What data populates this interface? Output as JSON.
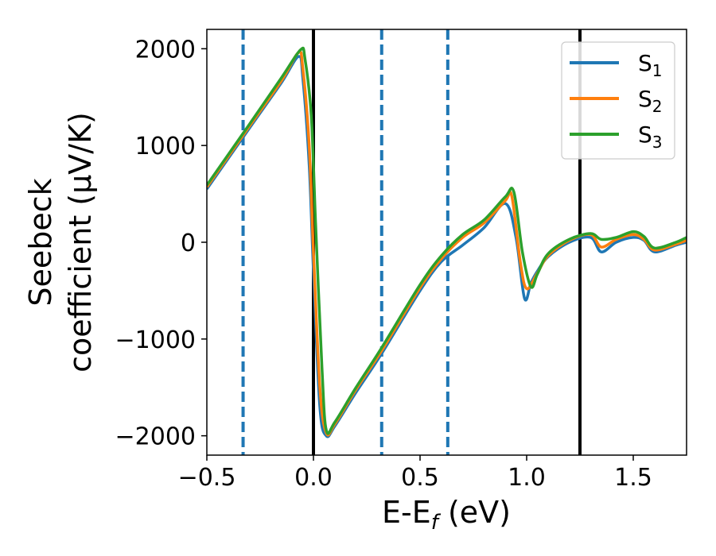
{
  "chart_data": {
    "type": "line",
    "xlabel": {
      "main": "E-E",
      "sub": "f",
      "unit": " (eV)"
    },
    "ylabel": {
      "line1": "Seebeck",
      "line2": "coefficient  (μV/K)"
    },
    "xlim": [
      -0.5,
      1.75
    ],
    "ylim": [
      -2200,
      2200
    ],
    "xticks": [
      {
        "value": -0.5,
        "label": "−0.5"
      },
      {
        "value": 0.0,
        "label": "0.0"
      },
      {
        "value": 0.5,
        "label": "0.5"
      },
      {
        "value": 1.0,
        "label": "1.0"
      },
      {
        "value": 1.5,
        "label": "1.5"
      }
    ],
    "yticks": [
      {
        "value": 2000,
        "label": "2000"
      },
      {
        "value": 1000,
        "label": "1000"
      },
      {
        "value": 0,
        "label": "0"
      },
      {
        "value": -1000,
        "label": "−1000"
      },
      {
        "value": -2000,
        "label": "−2000"
      }
    ],
    "vlines_solid": [
      0.0,
      1.25
    ],
    "vlines_dashed": [
      -0.33,
      0.32,
      0.63
    ],
    "vline_solid_color": "#000000",
    "vline_dashed_color": "#1f77b4",
    "legend": {
      "placement": "top-right"
    },
    "series": [
      {
        "name": "S",
        "sub": "1",
        "color": "#1f77b4",
        "x": [
          -0.5,
          -0.3,
          -0.15,
          -0.07,
          -0.05,
          -0.02,
          0.0,
          0.03,
          0.06,
          0.1,
          0.2,
          0.32,
          0.5,
          0.6,
          0.7,
          0.8,
          0.9,
          0.95,
          0.99,
          1.02,
          1.05,
          1.1,
          1.2,
          1.3,
          1.35,
          1.42,
          1.5,
          1.55,
          1.6,
          1.7,
          1.75
        ],
        "y": [
          550,
          1180,
          1650,
          1920,
          1700,
          800,
          -300,
          -1700,
          -2000,
          -1900,
          -1550,
          -1150,
          -500,
          -200,
          -30,
          150,
          400,
          50,
          -580,
          -420,
          -300,
          -150,
          0,
          50,
          -100,
          0,
          50,
          20,
          -100,
          -30,
          0
        ]
      },
      {
        "name": "S",
        "sub": "2",
        "color": "#ff7f0e",
        "x": [
          -0.5,
          -0.3,
          -0.15,
          -0.07,
          -0.05,
          -0.02,
          0.0,
          0.03,
          0.06,
          0.1,
          0.2,
          0.32,
          0.5,
          0.6,
          0.7,
          0.8,
          0.9,
          0.93,
          0.97,
          1.0,
          1.05,
          1.1,
          1.2,
          1.3,
          1.35,
          1.42,
          1.5,
          1.55,
          1.6,
          1.7,
          1.75
        ],
        "y": [
          570,
          1200,
          1670,
          1960,
          1800,
          1000,
          -100,
          -1500,
          -1970,
          -1880,
          -1520,
          -1120,
          -470,
          -170,
          50,
          200,
          430,
          480,
          -200,
          -480,
          -320,
          -140,
          20,
          80,
          -50,
          30,
          80,
          30,
          -80,
          -20,
          20
        ]
      },
      {
        "name": "S",
        "sub": "3",
        "color": "#2ca02c",
        "x": [
          -0.5,
          -0.3,
          -0.15,
          -0.06,
          -0.04,
          -0.01,
          0.01,
          0.04,
          0.06,
          0.1,
          0.2,
          0.32,
          0.5,
          0.6,
          0.7,
          0.8,
          0.9,
          0.94,
          0.98,
          1.02,
          1.05,
          1.1,
          1.2,
          1.3,
          1.35,
          1.42,
          1.5,
          1.55,
          1.6,
          1.7,
          1.75
        ],
        "y": [
          590,
          1220,
          1700,
          1990,
          1900,
          1300,
          200,
          -1300,
          -1940,
          -1860,
          -1500,
          -1090,
          -440,
          -140,
          80,
          230,
          470,
          520,
          -100,
          -460,
          -330,
          -120,
          30,
          90,
          30,
          50,
          110,
          60,
          -60,
          0,
          50
        ]
      }
    ]
  }
}
